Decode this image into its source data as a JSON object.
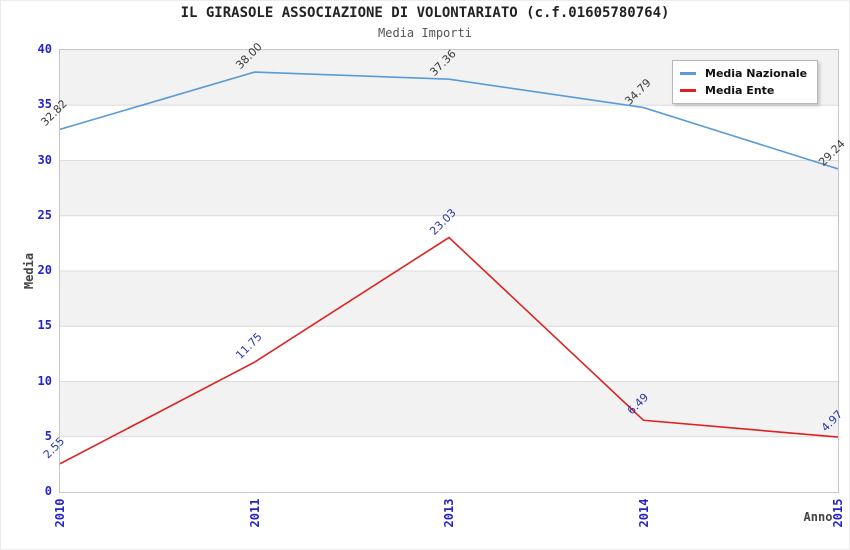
{
  "chart_data": {
    "type": "line",
    "title": "IL GIRASOLE ASSOCIAZIONE DI VOLONTARIATO (c.f.01605780764)",
    "subtitle": "Media Importi",
    "xlabel": "Anno",
    "ylabel": "Media",
    "categories": [
      "2010",
      "2011",
      "2013",
      "2014",
      "2015"
    ],
    "series": [
      {
        "name": "Media Nazionale",
        "color": "#5b9bd5",
        "label_color": "#3a3a3a",
        "values": [
          32.82,
          38,
          37.36,
          34.79,
          29.24
        ],
        "labels": [
          "32.82",
          "38.00",
          "37.36",
          "34.79",
          "29.24"
        ]
      },
      {
        "name": "Media Ente",
        "color": "#dd2222",
        "label_color": "#2a35a8",
        "values": [
          2.55,
          11.75,
          23.03,
          6.49,
          4.97
        ],
        "labels": [
          "2.55",
          "11.75",
          "23.03",
          "6.49",
          "4.97"
        ]
      }
    ],
    "ylim": [
      0,
      40
    ],
    "ytick_step": 5,
    "yticks": [
      "0",
      "5",
      "10",
      "15",
      "20",
      "25",
      "30",
      "35",
      "40"
    ],
    "grid": true,
    "legend_position": "top-right",
    "band_colors": [
      "#f2f2f2",
      "#ffffff"
    ],
    "gridline_color": "#dcdcdc",
    "tick_label_color": "#2424cc"
  }
}
